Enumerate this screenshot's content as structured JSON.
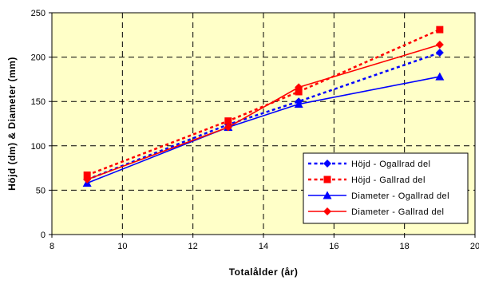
{
  "chart_data": {
    "type": "line",
    "xlabel": "Totalålder (år)",
    "ylabel": "Höjd (dm) & Diameter (mm)",
    "xlim": [
      8,
      20
    ],
    "ylim": [
      0,
      250
    ],
    "x_ticks": [
      8,
      10,
      12,
      14,
      16,
      18,
      20
    ],
    "y_ticks": [
      0,
      50,
      100,
      150,
      200,
      250
    ],
    "grid": true,
    "plot_background": "#ffffc8",
    "legend_position": "bottom-right",
    "series": [
      {
        "name": "Höjd - Ogallrad del",
        "color": "#0000ff",
        "dash": true,
        "marker": "diamond",
        "x": [
          9,
          13,
          15,
          19
        ],
        "y": [
          62,
          124,
          150,
          205
        ]
      },
      {
        "name": "Höjd - Gallrad del",
        "color": "#ff0000",
        "dash": true,
        "marker": "square",
        "x": [
          9,
          13,
          15,
          19
        ],
        "y": [
          67,
          128,
          161,
          231
        ]
      },
      {
        "name": "Diameter - Ogallrad del",
        "color": "#0000ff",
        "dash": false,
        "marker": "triangle",
        "x": [
          9,
          13,
          15,
          19
        ],
        "y": [
          58,
          121,
          147,
          178
        ]
      },
      {
        "name": "Diameter - Gallrad del",
        "color": "#ff0000",
        "dash": false,
        "marker": "diamond",
        "x": [
          9,
          13,
          15,
          19
        ],
        "y": [
          62,
          121,
          166,
          214
        ]
      }
    ]
  }
}
